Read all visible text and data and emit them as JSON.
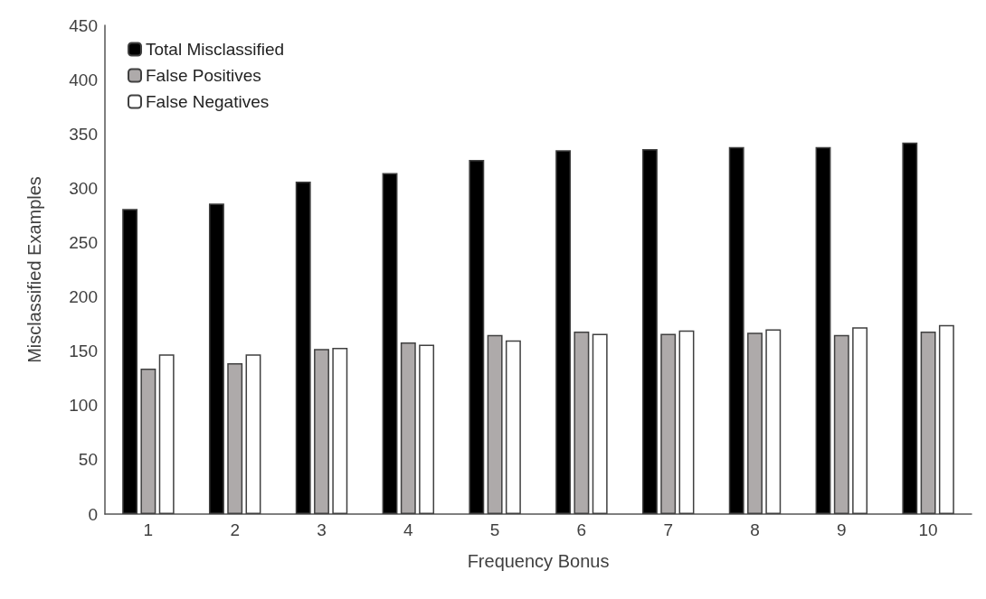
{
  "chart_data": {
    "type": "bar",
    "xlabel": "Frequency Bonus",
    "ylabel": "Misclassified Examples",
    "categories": [
      "1",
      "2",
      "3",
      "4",
      "5",
      "6",
      "7",
      "8",
      "9",
      "10"
    ],
    "series": [
      {
        "name": "Total Misclassified",
        "color": "#000000",
        "values": [
          281,
          286,
          306,
          314,
          326,
          335,
          336,
          338,
          338,
          342
        ]
      },
      {
        "name": "False Positives",
        "color": "#aeaaaa",
        "values": [
          134,
          139,
          152,
          158,
          165,
          168,
          166,
          167,
          165,
          168
        ]
      },
      {
        "name": "False Negatives",
        "color": "#ffffff",
        "values": [
          147,
          147,
          153,
          156,
          160,
          166,
          169,
          170,
          172,
          174
        ]
      }
    ],
    "ylim": [
      0,
      450
    ],
    "yticks": [
      0,
      50,
      100,
      150,
      200,
      250,
      300,
      350,
      400,
      450
    ],
    "grid": false,
    "legend": "top left"
  }
}
